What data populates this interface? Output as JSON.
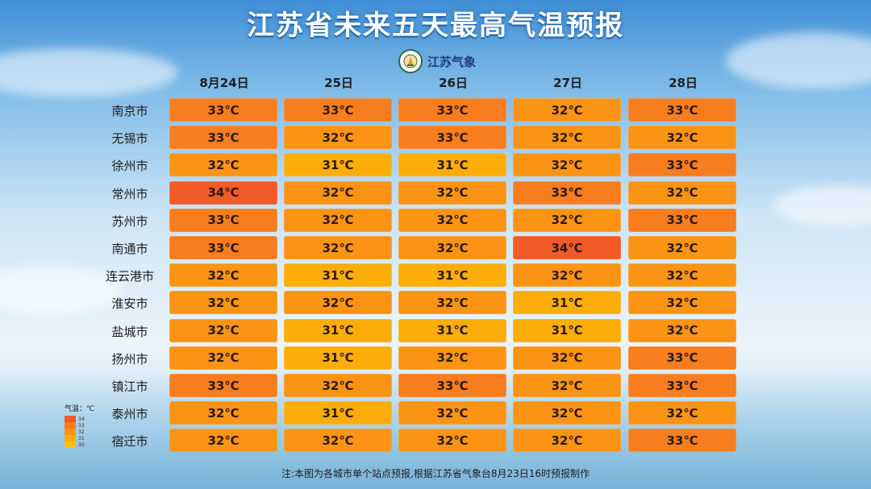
{
  "title": "江苏省未来五天最高气温预报",
  "logo": {
    "text": "江苏气象",
    "icon": "meteorology-emblem-icon"
  },
  "columns": [
    "8月24日",
    "25日",
    "26日",
    "27日",
    "28日"
  ],
  "rows": [
    {
      "city": "南京市",
      "values": [
        "33℃",
        "33℃",
        "33℃",
        "32℃",
        "33℃"
      ],
      "temps": [
        33,
        33,
        33,
        32,
        33
      ]
    },
    {
      "city": "无锡市",
      "values": [
        "33℃",
        "32℃",
        "33℃",
        "32℃",
        "32℃"
      ],
      "temps": [
        33,
        32,
        33,
        32,
        32
      ]
    },
    {
      "city": "徐州市",
      "values": [
        "32℃",
        "31℃",
        "31℃",
        "32℃",
        "33℃"
      ],
      "temps": [
        32,
        31,
        31,
        32,
        33
      ]
    },
    {
      "city": "常州市",
      "values": [
        "34℃",
        "32℃",
        "32℃",
        "33℃",
        "32℃"
      ],
      "temps": [
        34,
        32,
        32,
        33,
        32
      ]
    },
    {
      "city": "苏州市",
      "values": [
        "33℃",
        "32℃",
        "32℃",
        "32℃",
        "33℃"
      ],
      "temps": [
        33,
        32,
        32,
        32,
        33
      ]
    },
    {
      "city": "南通市",
      "values": [
        "33℃",
        "32℃",
        "32℃",
        "34℃",
        "32℃"
      ],
      "temps": [
        33,
        32,
        32,
        34,
        32
      ]
    },
    {
      "city": "连云港市",
      "values": [
        "32℃",
        "31℃",
        "31℃",
        "32℃",
        "32℃"
      ],
      "temps": [
        32,
        31,
        31,
        32,
        32
      ]
    },
    {
      "city": "淮安市",
      "values": [
        "32℃",
        "32℃",
        "32℃",
        "31℃",
        "32℃"
      ],
      "temps": [
        32,
        32,
        32,
        31,
        32
      ]
    },
    {
      "city": "盐城市",
      "values": [
        "32℃",
        "31℃",
        "31℃",
        "31℃",
        "32℃"
      ],
      "temps": [
        32,
        31,
        31,
        31,
        32
      ]
    },
    {
      "city": "扬州市",
      "values": [
        "32℃",
        "31℃",
        "32℃",
        "32℃",
        "33℃"
      ],
      "temps": [
        32,
        31,
        32,
        32,
        33
      ]
    },
    {
      "city": "镇江市",
      "values": [
        "33℃",
        "32℃",
        "33℃",
        "32℃",
        "33℃"
      ],
      "temps": [
        33,
        32,
        33,
        32,
        33
      ]
    },
    {
      "city": "泰州市",
      "values": [
        "32℃",
        "31℃",
        "32℃",
        "32℃",
        "32℃"
      ],
      "temps": [
        32,
        31,
        32,
        32,
        32
      ]
    },
    {
      "city": "宿迁市",
      "values": [
        "32℃",
        "32℃",
        "32℃",
        "32℃",
        "33℃"
      ],
      "temps": [
        32,
        32,
        32,
        32,
        33
      ]
    }
  ],
  "legend": {
    "title": "气温：℃",
    "items": [
      {
        "label": "34",
        "color": "#f25a28"
      },
      {
        "label": "33",
        "color": "#f77d1e"
      },
      {
        "label": "32",
        "color": "#fb9414"
      },
      {
        "label": "31",
        "color": "#fcad0a"
      },
      {
        "label": "30",
        "color": "#fdc20a"
      }
    ]
  },
  "note": "注:本图为各城市单个站点预报,根据江苏省气象台8月23日16时预报制作"
}
